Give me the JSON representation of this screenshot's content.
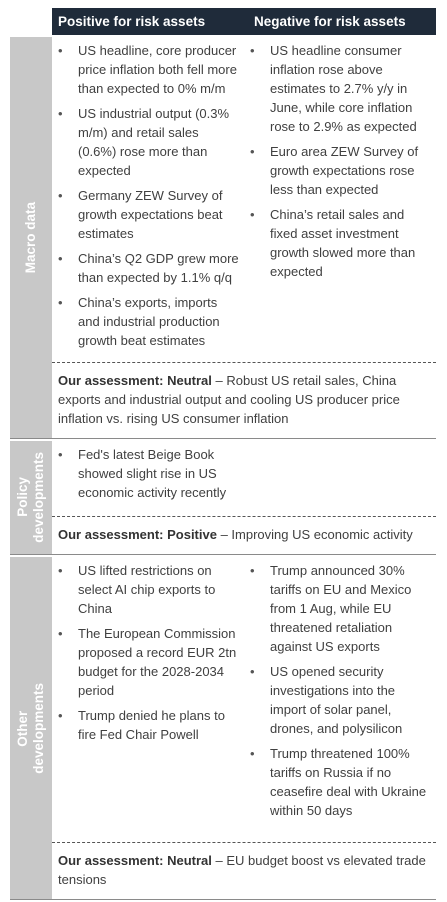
{
  "header": {
    "positive": "Positive for risk assets",
    "negative": "Negative for risk assets"
  },
  "sections": [
    {
      "label": [
        "Macro data"
      ],
      "positive": [
        "US headline, core producer price inflation both fell more than expected to 0% m/m",
        "US industrial output (0.3% m/m) and retail sales (0.6%) rose more than expected",
        "Germany ZEW Survey of growth expectations beat estimates",
        "China’s Q2 GDP grew more than expected by 1.1% q/q",
        "China’s exports, imports and industrial production growth beat estimates"
      ],
      "negative": [
        "US headline consumer inflation rose above estimates to 2.7% y/y in June, while core inflation rose to 2.9% as expected",
        "Euro area ZEW Survey of growth expectations rose less than expected",
        "China’s retail sales and fixed asset investment growth slowed more than expected"
      ],
      "assessment": {
        "label": "Our assessment: Neutral",
        "text": "– Robust US retail sales, China exports and industrial output and cooling US producer price inflation vs. rising US consumer inflation"
      }
    },
    {
      "label": [
        "Policy",
        "developments"
      ],
      "positive": [
        "Fed's latest Beige Book showed slight rise in US economic activity recently"
      ],
      "negative": [],
      "assessment": {
        "label": "Our assessment: Positive",
        "text": "– Improving US economic activity"
      }
    },
    {
      "label": [
        "Other",
        "developments"
      ],
      "positive": [
        "US lifted restrictions on select AI chip exports to China",
        "The European Commission proposed a record EUR 2tn budget for the 2028-2034 period",
        "Trump denied he plans to fire Fed Chair Powell"
      ],
      "negative": [
        "Trump announced 30% tariffs on EU and Mexico from 1 Aug, while EU threatened retaliation against US exports",
        "US opened security investigations into the import of solar panel, drones, and polysilicon",
        "Trump threatened 100% tariffs on Russia if no ceasefire deal with Ukraine within 50 days"
      ],
      "assessment": {
        "label": "Our assessment: Neutral",
        "text": "– EU budget boost vs elevated trade tensions"
      }
    }
  ]
}
